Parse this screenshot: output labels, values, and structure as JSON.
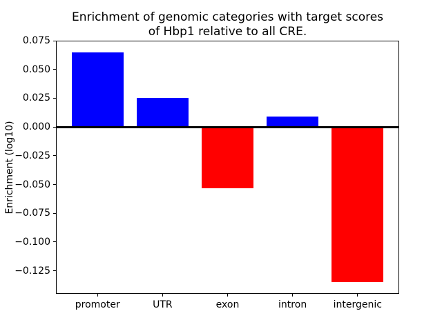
{
  "chart_data": {
    "type": "bar",
    "title_lines": [
      "Enrichment of genomic categories with target scores",
      "of Hbp1 relative to all CRE."
    ],
    "title": "Enrichment of genomic categories with target scores of Hbp1 relative to all CRE.",
    "xlabel": "",
    "ylabel": "Enrichment (log10)",
    "categories": [
      "promoter",
      "UTR",
      "exon",
      "intron",
      "intergenic"
    ],
    "values": [
      0.065,
      0.025,
      -0.053,
      0.009,
      -0.135
    ],
    "positive_color": "#0000ff",
    "negative_color": "#ff0000",
    "yticks": [
      0.075,
      0.05,
      0.025,
      0.0,
      -0.025,
      -0.05,
      -0.075,
      -0.1,
      -0.125
    ],
    "ylim": [
      -0.145,
      0.075
    ],
    "bar_width_fraction": 0.8,
    "grid": false,
    "zero_line": true,
    "legend": null,
    "axis_color": "#000000",
    "background_color": "#ffffff"
  }
}
